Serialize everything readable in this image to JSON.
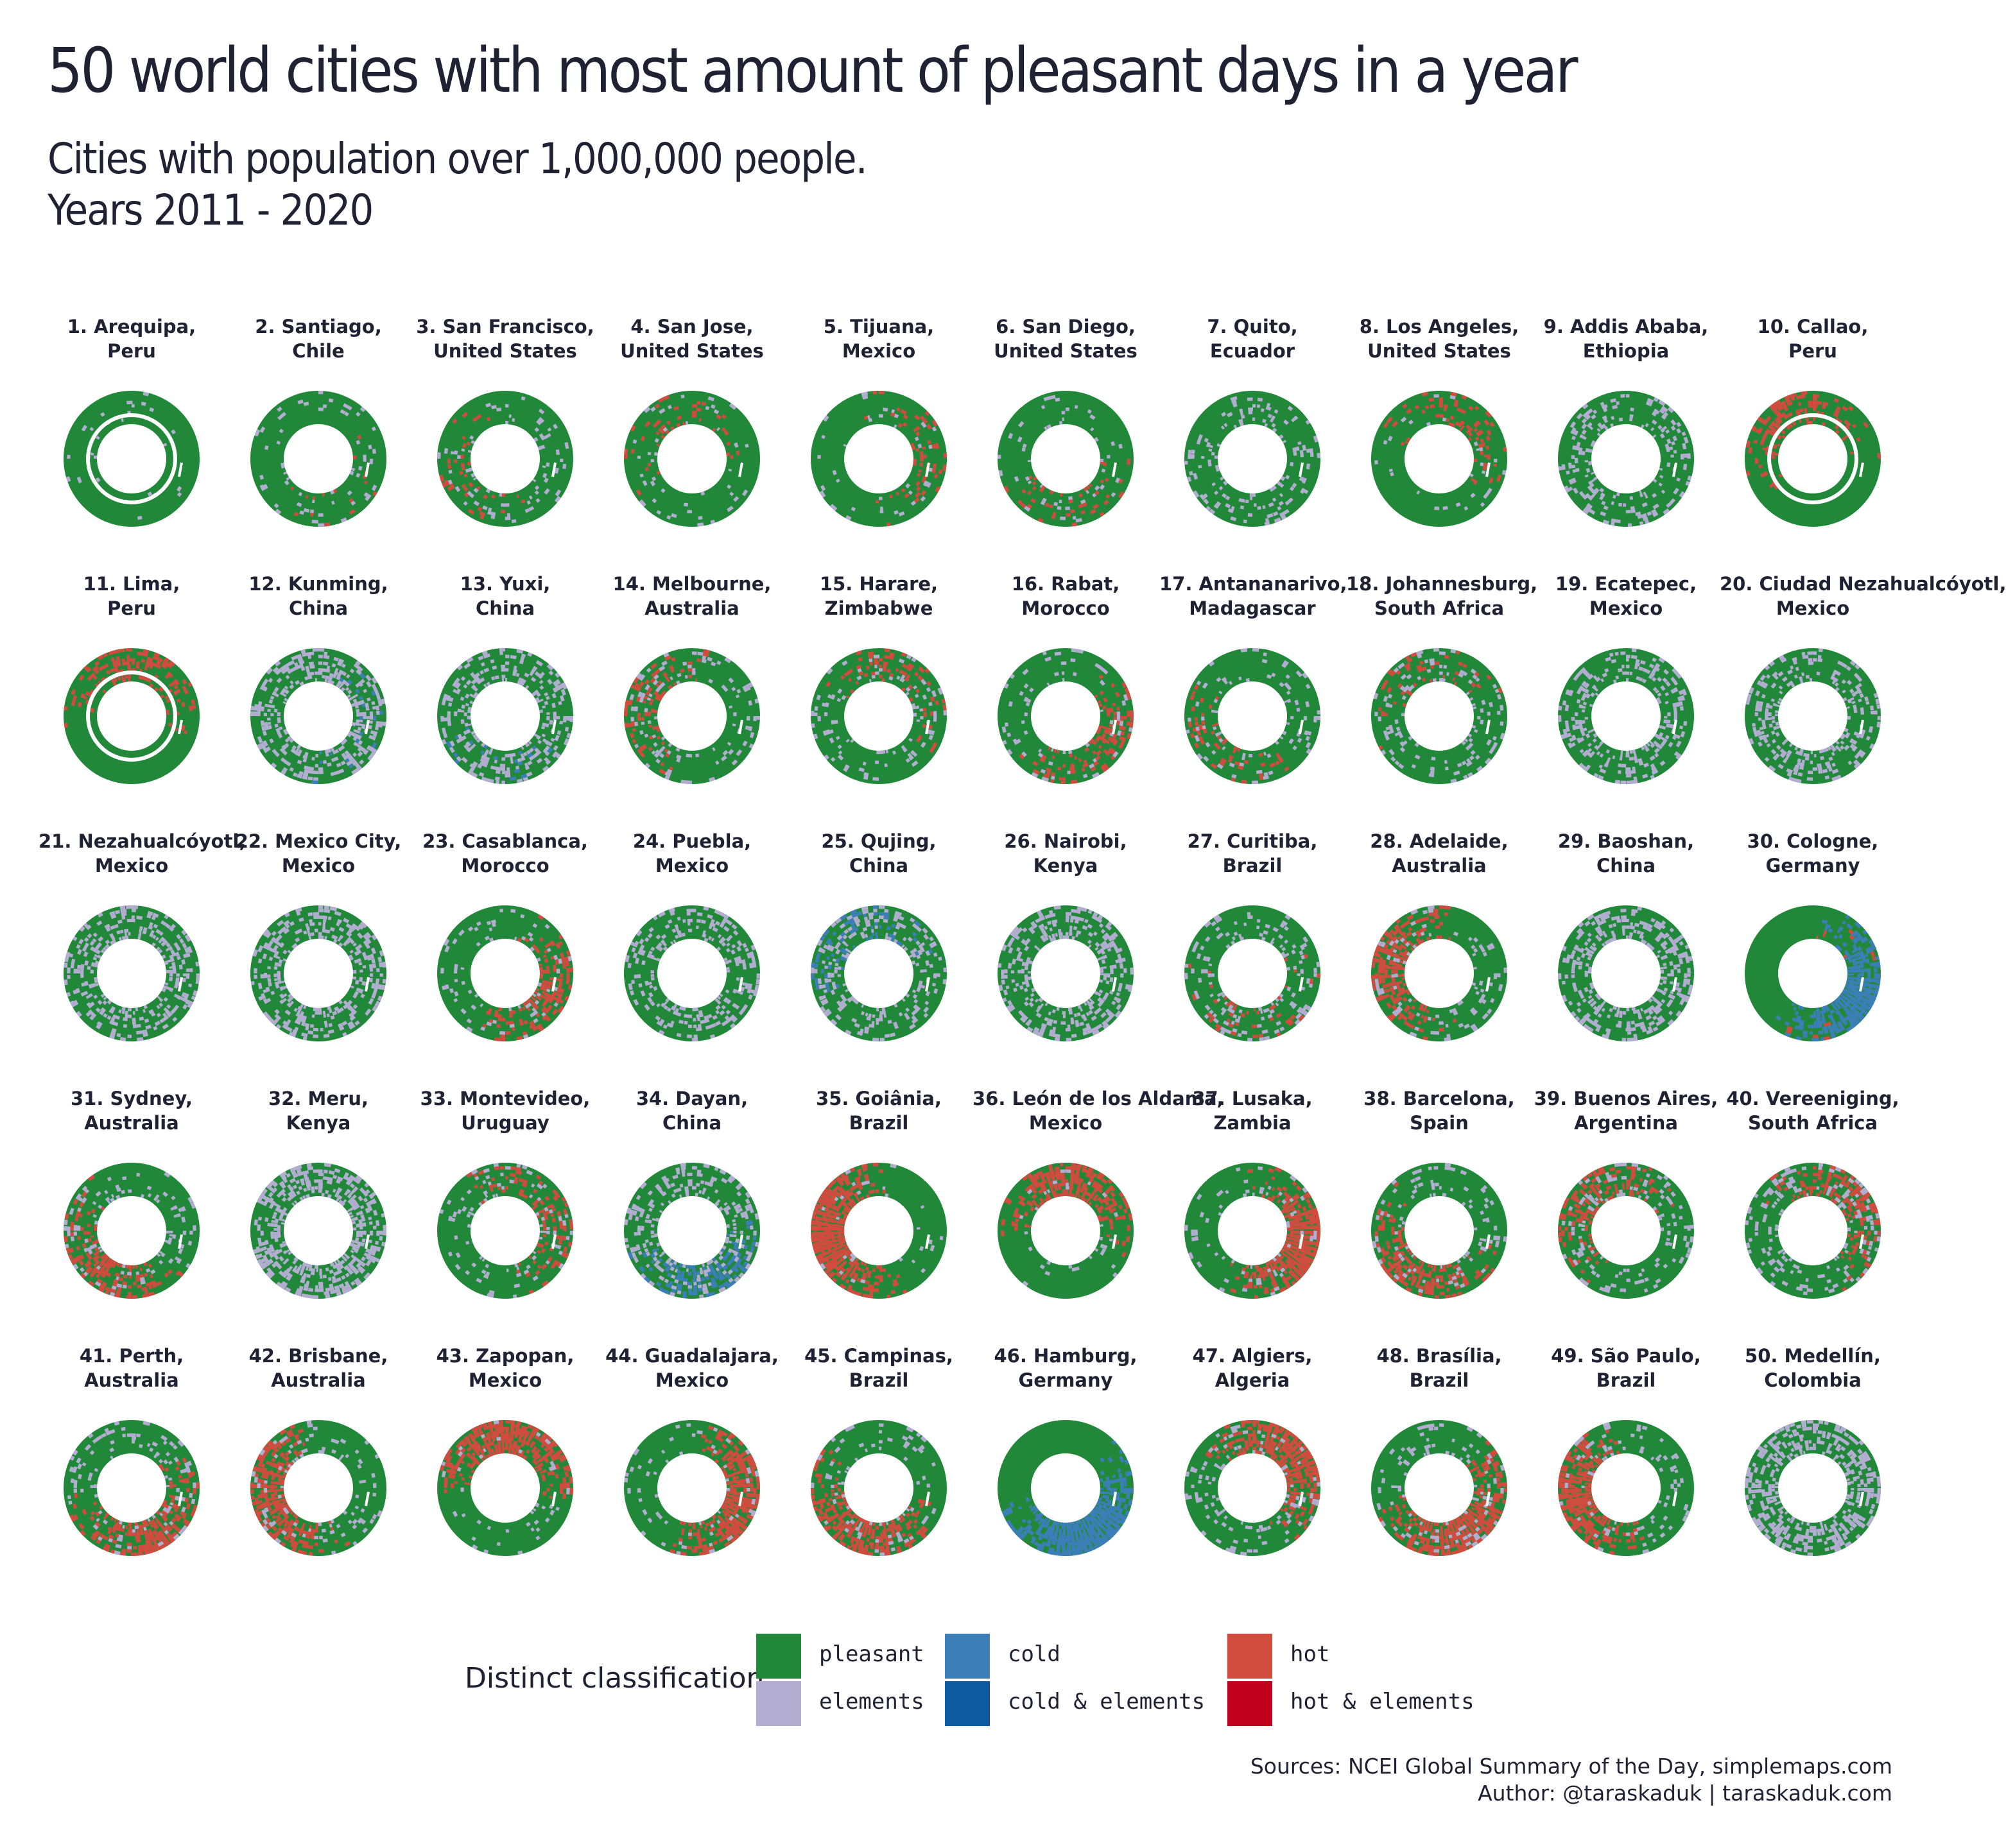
{
  "title": "50 world cities with most amount of pleasant days in a year",
  "subtitle_line1": "Cities with population over 1,000,000 people.",
  "subtitle_line2": "Years 2011 - 2020",
  "legend": {
    "title": "Distinct classification",
    "items": [
      {
        "label": "pleasant",
        "color": "#21883a"
      },
      {
        "label": "elements",
        "color": "#b3aed1"
      },
      {
        "label": "cold",
        "color": "#3c7fb8"
      },
      {
        "label": "cold & elements",
        "color": "#0e5aa0"
      },
      {
        "label": "hot",
        "color": "#d14c3e"
      },
      {
        "label": "hot & elements",
        "color": "#c0001c"
      }
    ]
  },
  "sources": {
    "line1": "Sources: NCEI Global Summary of the Day, simplemaps.com",
    "line2": "Author: @taraskaduk | taraskaduk.com"
  },
  "chart_data": {
    "type": "polar-heatmap",
    "categories": [
      "pleasant",
      "elements",
      "cold",
      "cold & elements",
      "hot",
      "hot & elements"
    ],
    "cities": [
      {
        "rank": 1,
        "line1": "1. Arequipa,",
        "line2": "Peru",
        "mix": {
          "pleasant": 0.97,
          "elements": 0.03
        }
      },
      {
        "rank": 2,
        "line1": "2. Santiago,",
        "line2": "Chile",
        "mix": {
          "pleasant": 0.9,
          "elements": 0.08,
          "hot": 0.02
        }
      },
      {
        "rank": 3,
        "line1": "3. San Francisco,",
        "line2": "United States",
        "mix": {
          "pleasant": 0.86,
          "elements": 0.09,
          "hot": 0.05
        }
      },
      {
        "rank": 4,
        "line1": "4. San Jose,",
        "line2": "United States",
        "mix": {
          "pleasant": 0.86,
          "elements": 0.07,
          "hot": 0.07
        }
      },
      {
        "rank": 5,
        "line1": "5. Tijuana,",
        "line2": "Mexico",
        "mix": {
          "pleasant": 0.84,
          "elements": 0.06,
          "hot": 0.1
        }
      },
      {
        "rank": 6,
        "line1": "6. San Diego,",
        "line2": "United States",
        "mix": {
          "pleasant": 0.84,
          "elements": 0.06,
          "hot": 0.1
        }
      },
      {
        "rank": 7,
        "line1": "7. Quito,",
        "line2": "Ecuador",
        "mix": {
          "pleasant": 0.82,
          "elements": 0.18
        }
      },
      {
        "rank": 8,
        "line1": "8. Los Angeles,",
        "line2": "United States",
        "mix": {
          "pleasant": 0.82,
          "elements": 0.04,
          "hot": 0.14
        }
      },
      {
        "rank": 9,
        "line1": "9. Addis Ababa,",
        "line2": "Ethiopia",
        "mix": {
          "pleasant": 0.78,
          "elements": 0.22
        }
      },
      {
        "rank": 10,
        "line1": "10. Callao,",
        "line2": "Peru",
        "mix": {
          "pleasant": 0.78,
          "hot": 0.22
        }
      },
      {
        "rank": 11,
        "line1": "11. Lima,",
        "line2": "Peru",
        "mix": {
          "pleasant": 0.76,
          "hot": 0.24
        }
      },
      {
        "rank": 12,
        "line1": "12. Kunming,",
        "line2": "China",
        "mix": {
          "pleasant": 0.68,
          "elements": 0.28,
          "cold": 0.04
        }
      },
      {
        "rank": 13,
        "line1": "13. Yuxi,",
        "line2": "China",
        "mix": {
          "pleasant": 0.7,
          "elements": 0.26,
          "cold": 0.04
        }
      },
      {
        "rank": 14,
        "line1": "14. Melbourne,",
        "line2": "Australia",
        "mix": {
          "pleasant": 0.74,
          "elements": 0.14,
          "hot": 0.12
        }
      },
      {
        "rank": 15,
        "line1": "15. Harare,",
        "line2": "Zimbabwe",
        "mix": {
          "pleasant": 0.76,
          "elements": 0.12,
          "hot": 0.12
        }
      },
      {
        "rank": 16,
        "line1": "16. Rabat,",
        "line2": "Morocco",
        "mix": {
          "pleasant": 0.72,
          "elements": 0.1,
          "hot": 0.18
        }
      },
      {
        "rank": 17,
        "line1": "17. Antananarivo,",
        "line2": "Madagascar",
        "mix": {
          "pleasant": 0.78,
          "elements": 0.12,
          "hot": 0.1
        }
      },
      {
        "rank": 18,
        "line1": "18. Johannesburg,",
        "line2": "South Africa",
        "mix": {
          "pleasant": 0.76,
          "elements": 0.14,
          "hot": 0.1
        }
      },
      {
        "rank": 19,
        "line1": "19. Ecatepec,",
        "line2": "Mexico",
        "mix": {
          "pleasant": 0.72,
          "elements": 0.28
        }
      },
      {
        "rank": 20,
        "line1": "20. Ciudad Nezahualcóyotl,",
        "line2": "Mexico",
        "mix": {
          "pleasant": 0.72,
          "elements": 0.28
        }
      },
      {
        "rank": 21,
        "line1": "21. Nezahualcóyotl,",
        "line2": "Mexico",
        "mix": {
          "pleasant": 0.7,
          "elements": 0.3
        }
      },
      {
        "rank": 22,
        "line1": "22. Mexico City,",
        "line2": "Mexico",
        "mix": {
          "pleasant": 0.7,
          "elements": 0.3
        }
      },
      {
        "rank": 23,
        "line1": "23. Casablanca,",
        "line2": "Morocco",
        "mix": {
          "pleasant": 0.7,
          "elements": 0.08,
          "hot": 0.22
        }
      },
      {
        "rank": 24,
        "line1": "24. Puebla,",
        "line2": "Mexico",
        "mix": {
          "pleasant": 0.74,
          "elements": 0.26
        }
      },
      {
        "rank": 25,
        "line1": "25. Qujing,",
        "line2": "China",
        "mix": {
          "pleasant": 0.66,
          "elements": 0.2,
          "cold": 0.14
        }
      },
      {
        "rank": 26,
        "line1": "26. Nairobi,",
        "line2": "Kenya",
        "mix": {
          "pleasant": 0.7,
          "elements": 0.3
        }
      },
      {
        "rank": 27,
        "line1": "27. Curitiba,",
        "line2": "Brazil",
        "mix": {
          "pleasant": 0.72,
          "elements": 0.16,
          "hot": 0.12
        }
      },
      {
        "rank": 28,
        "line1": "28. Adelaide,",
        "line2": "Australia",
        "mix": {
          "pleasant": 0.66,
          "elements": 0.1,
          "hot": 0.24
        }
      },
      {
        "rank": 29,
        "line1": "29. Baoshan,",
        "line2": "China",
        "mix": {
          "pleasant": 0.7,
          "elements": 0.3
        }
      },
      {
        "rank": 30,
        "line1": "30. Cologne,",
        "line2": "Germany",
        "mix": {
          "pleasant": 0.62,
          "cold": 0.34,
          "hot": 0.04
        }
      },
      {
        "rank": 31,
        "line1": "31. Sydney,",
        "line2": "Australia",
        "mix": {
          "pleasant": 0.7,
          "elements": 0.1,
          "hot": 0.2
        }
      },
      {
        "rank": 32,
        "line1": "32. Meru,",
        "line2": "Kenya",
        "mix": {
          "pleasant": 0.6,
          "elements": 0.4
        }
      },
      {
        "rank": 33,
        "line1": "33. Montevideo,",
        "line2": "Uruguay",
        "mix": {
          "pleasant": 0.72,
          "elements": 0.12,
          "hot": 0.16
        }
      },
      {
        "rank": 34,
        "line1": "34. Dayan,",
        "line2": "China",
        "mix": {
          "pleasant": 0.58,
          "elements": 0.22,
          "cold": 0.2
        }
      },
      {
        "rank": 35,
        "line1": "35. Goiânia,",
        "line2": "Brazil",
        "mix": {
          "pleasant": 0.56,
          "elements": 0.04,
          "hot": 0.4
        }
      },
      {
        "rank": 36,
        "line1": "36. León de los Aldama,",
        "line2": "Mexico",
        "mix": {
          "pleasant": 0.68,
          "elements": 0.04,
          "hot": 0.28
        }
      },
      {
        "rank": 37,
        "line1": "37. Lusaka,",
        "line2": "Zambia",
        "mix": {
          "pleasant": 0.58,
          "elements": 0.06,
          "hot": 0.36
        }
      },
      {
        "rank": 38,
        "line1": "38. Barcelona,",
        "line2": "Spain",
        "mix": {
          "pleasant": 0.66,
          "elements": 0.1,
          "hot": 0.24
        }
      },
      {
        "rank": 39,
        "line1": "39. Buenos Aires,",
        "line2": "Argentina",
        "mix": {
          "pleasant": 0.68,
          "elements": 0.12,
          "hot": 0.2
        }
      },
      {
        "rank": 40,
        "line1": "40. Vereeniging,",
        "line2": "South Africa",
        "mix": {
          "pleasant": 0.64,
          "elements": 0.14,
          "hot": 0.22
        }
      },
      {
        "rank": 41,
        "line1": "41. Perth,",
        "line2": "Australia",
        "mix": {
          "pleasant": 0.64,
          "elements": 0.1,
          "hot": 0.26
        }
      },
      {
        "rank": 42,
        "line1": "42. Brisbane,",
        "line2": "Australia",
        "mix": {
          "pleasant": 0.6,
          "elements": 0.1,
          "hot": 0.3
        }
      },
      {
        "rank": 43,
        "line1": "43. Zapopan,",
        "line2": "Mexico",
        "mix": {
          "pleasant": 0.62,
          "elements": 0.06,
          "hot": 0.32
        }
      },
      {
        "rank": 44,
        "line1": "44. Guadalajara,",
        "line2": "Mexico",
        "mix": {
          "pleasant": 0.62,
          "elements": 0.06,
          "hot": 0.32
        }
      },
      {
        "rank": 45,
        "line1": "45. Campinas,",
        "line2": "Brazil",
        "mix": {
          "pleasant": 0.62,
          "elements": 0.08,
          "hot": 0.3
        }
      },
      {
        "rank": 46,
        "line1": "46. Hamburg,",
        "line2": "Germany",
        "mix": {
          "pleasant": 0.58,
          "cold": 0.42
        }
      },
      {
        "rank": 47,
        "line1": "47. Algiers,",
        "line2": "Algeria",
        "mix": {
          "pleasant": 0.6,
          "elements": 0.08,
          "hot": 0.32
        }
      },
      {
        "rank": 48,
        "line1": "48. Brasília,",
        "line2": "Brazil",
        "mix": {
          "pleasant": 0.56,
          "elements": 0.1,
          "hot": 0.34
        }
      },
      {
        "rank": 49,
        "line1": "49. São Paulo,",
        "line2": "Brazil",
        "mix": {
          "pleasant": 0.6,
          "elements": 0.08,
          "hot": 0.32
        }
      },
      {
        "rank": 50,
        "line1": "50. Medellín,",
        "line2": "Colombia",
        "mix": {
          "pleasant": 0.6,
          "elements": 0.4
        }
      }
    ]
  }
}
